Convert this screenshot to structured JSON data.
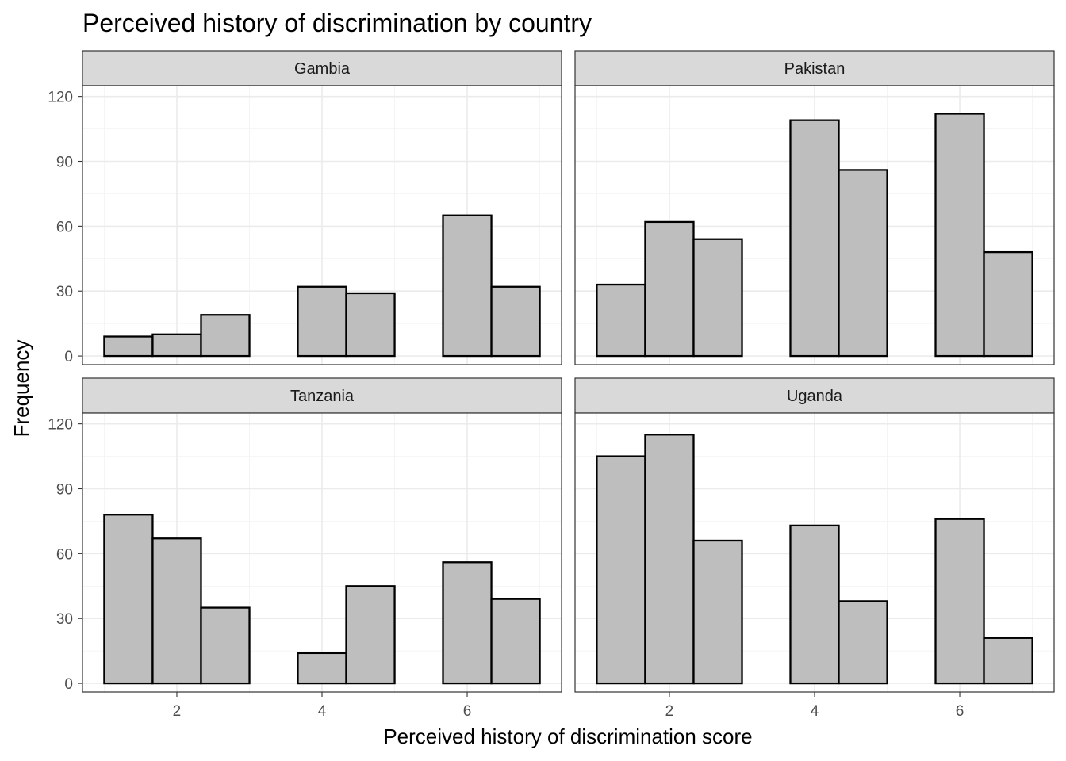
{
  "chart_data": {
    "type": "bar",
    "title": "Perceived history of discrimination by country",
    "xlabel": "Perceived history of discrimination score",
    "ylabel": "Frequency",
    "xlim": [
      0.7,
      7.3
    ],
    "ylim": [
      -4,
      125
    ],
    "x_ticks": [
      2,
      4,
      6
    ],
    "y_ticks": [
      0,
      30,
      60,
      90,
      120
    ],
    "bin_width": 0.667,
    "bin_centers": [
      1.333,
      2.0,
      2.667,
      3.333,
      4.0,
      4.667,
      5.333,
      6.0,
      6.667
    ],
    "grid": true,
    "bar_fill": "#bebebe",
    "bar_outline": "#000000",
    "strip_fill": "#d9d9d9",
    "facets": [
      {
        "name": "Gambia",
        "values": [
          9,
          10,
          19,
          0,
          32,
          29,
          0,
          65,
          32
        ]
      },
      {
        "name": "Pakistan",
        "values": [
          33,
          62,
          54,
          0,
          109,
          86,
          0,
          112,
          48
        ]
      },
      {
        "name": "Tanzania",
        "values": [
          78,
          67,
          35,
          0,
          14,
          45,
          0,
          56,
          39
        ]
      },
      {
        "name": "Uganda",
        "values": [
          105,
          115,
          66,
          0,
          73,
          38,
          0,
          76,
          21
        ]
      }
    ]
  }
}
